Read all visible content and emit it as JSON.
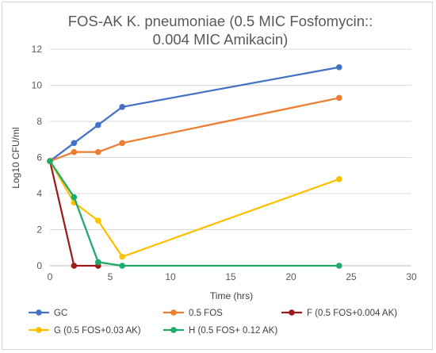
{
  "chart_data": {
    "type": "line",
    "title_lines": [
      "FOS-AK K. pneumoniae (0.5 MIC Fosfomycin::",
      "0.004 MIC Amikacin)"
    ],
    "xlabel": "Time (hrs)",
    "ylabel": "Log10 CFU/ml",
    "xlim": [
      0,
      30
    ],
    "ylim": [
      0,
      12
    ],
    "x_ticks": [
      0,
      5,
      10,
      15,
      20,
      25,
      30
    ],
    "y_ticks": [
      0,
      2,
      4,
      6,
      8,
      10,
      12
    ],
    "grid": "horizontal",
    "legend_position": "bottom",
    "series": [
      {
        "name": "GC",
        "color": "#4472C4",
        "points": [
          [
            0,
            5.8
          ],
          [
            2,
            6.8
          ],
          [
            4,
            7.8
          ],
          [
            6,
            8.8
          ],
          [
            24,
            11.0
          ]
        ]
      },
      {
        "name": "0.5 FOS",
        "color": "#ED7D31",
        "points": [
          [
            0,
            5.8
          ],
          [
            2,
            6.3
          ],
          [
            4,
            6.3
          ],
          [
            6,
            6.8
          ],
          [
            24,
            9.3
          ]
        ]
      },
      {
        "name": "F (0.5 FOS+0.004 AK)",
        "color": "#9E1B1B",
        "points": [
          [
            0,
            5.8
          ],
          [
            2,
            0.0
          ],
          [
            4,
            0.0
          ]
        ]
      },
      {
        "name": "G (0.5 FOS+0.03 AK)",
        "color": "#FFC000",
        "points": [
          [
            0,
            5.8
          ],
          [
            2,
            3.5
          ],
          [
            4,
            2.5
          ],
          [
            6,
            0.5
          ],
          [
            24,
            4.8
          ]
        ]
      },
      {
        "name": "H (0.5 FOS+ 0.12 AK)",
        "color": "#1DAA6B",
        "points": [
          [
            0,
            5.8
          ],
          [
            2,
            3.8
          ],
          [
            4,
            0.2
          ],
          [
            6,
            0.0
          ],
          [
            24,
            0.0
          ]
        ]
      }
    ]
  }
}
